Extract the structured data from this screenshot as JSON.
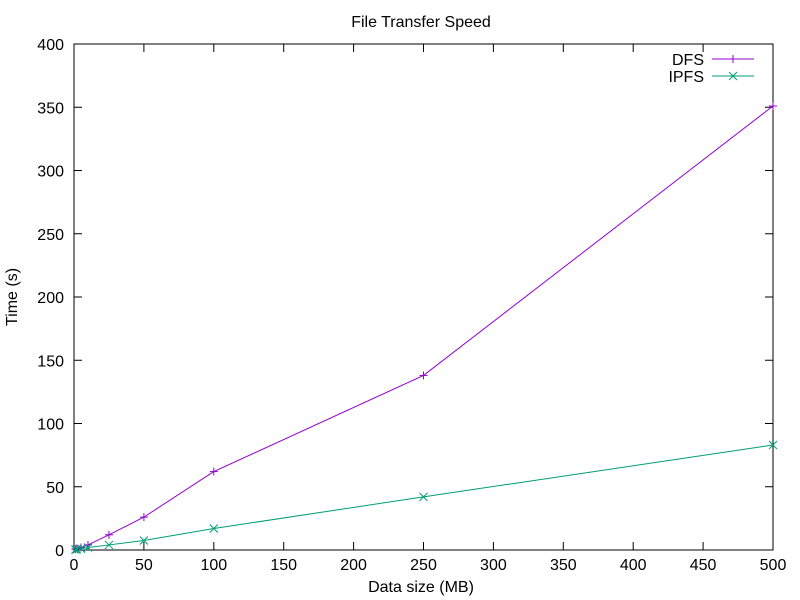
{
  "chart_data": {
    "type": "line",
    "title": "File Transfer Speed",
    "xlabel": "Data size (MB)",
    "ylabel": "Time (s)",
    "xlim": [
      0,
      500
    ],
    "ylim": [
      0,
      400
    ],
    "xticks": [
      0,
      50,
      100,
      150,
      200,
      250,
      300,
      350,
      400,
      450,
      500
    ],
    "yticks": [
      0,
      50,
      100,
      150,
      200,
      250,
      300,
      350,
      400
    ],
    "grid": false,
    "legend_position": "top-right",
    "series": [
      {
        "name": "DFS",
        "color": "#9400d3",
        "marker": "plus",
        "x": [
          1,
          2,
          5,
          10,
          25,
          50,
          100,
          250,
          500
        ],
        "y": [
          0.7,
          1.2,
          2,
          4,
          12,
          26,
          62,
          138,
          351
        ]
      },
      {
        "name": "IPFS",
        "color": "#009e73",
        "marker": "cross",
        "x": [
          1,
          2,
          5,
          10,
          25,
          50,
          100,
          250,
          500
        ],
        "y": [
          0.3,
          0.5,
          1,
          2,
          4,
          7.5,
          17,
          42,
          83
        ]
      }
    ]
  }
}
